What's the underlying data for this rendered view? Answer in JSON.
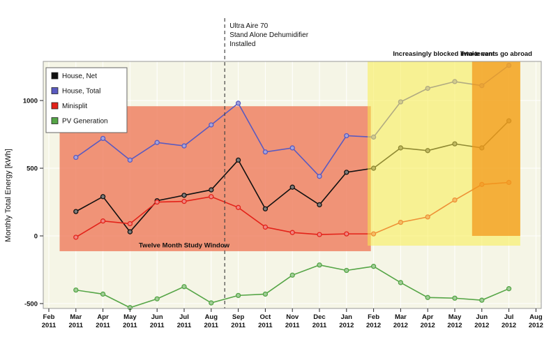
{
  "chart_data": {
    "type": "line",
    "title": "",
    "xlabel": "",
    "ylabel": "Monthly Total Energy [kWh]",
    "plot_bg": "#f5f5e6",
    "grid_color": "#ffffff",
    "ylim": [
      -536,
      1289
    ],
    "yticks": [
      -500,
      0,
      500,
      1000
    ],
    "months": [
      {
        "month": "Feb",
        "year": "2011"
      },
      {
        "month": "Mar",
        "year": "2011"
      },
      {
        "month": "Apr",
        "year": "2011"
      },
      {
        "month": "May",
        "year": "2011"
      },
      {
        "month": "Jun",
        "year": "2011"
      },
      {
        "month": "Jul",
        "year": "2011"
      },
      {
        "month": "Aug",
        "year": "2011"
      },
      {
        "month": "Sep",
        "year": "2011"
      },
      {
        "month": "Oct",
        "year": "2011"
      },
      {
        "month": "Nov",
        "year": "2011"
      },
      {
        "month": "Dec",
        "year": "2011"
      },
      {
        "month": "Jan",
        "year": "2012"
      },
      {
        "month": "Feb",
        "year": "2012"
      },
      {
        "month": "Mar",
        "year": "2012"
      },
      {
        "month": "Apr",
        "year": "2012"
      },
      {
        "month": "May",
        "year": "2012"
      },
      {
        "month": "Jun",
        "year": "2012"
      },
      {
        "month": "Jul",
        "year": "2012"
      },
      {
        "month": "Aug",
        "year": "2012"
      }
    ],
    "series": [
      {
        "id": "house-net",
        "name": "House, Net",
        "color": "#111111",
        "start_index": 1,
        "values": [
          180,
          290,
          30,
          260,
          300,
          340,
          560,
          200,
          360,
          230,
          470,
          500,
          650,
          630,
          680,
          650,
          850
        ]
      },
      {
        "id": "house-total",
        "name": "House, Total",
        "color": "#5a5ac0",
        "start_index": 1,
        "values": [
          580,
          720,
          560,
          690,
          665,
          820,
          980,
          620,
          650,
          440,
          740,
          730,
          990,
          1090,
          1140,
          1110,
          1260
        ]
      },
      {
        "id": "minisplit",
        "name": "Minisplit",
        "color": "#e32219",
        "start_index": 1,
        "values": [
          -10,
          110,
          90,
          250,
          255,
          290,
          210,
          65,
          25,
          10,
          15,
          15,
          100,
          140,
          265,
          380,
          395
        ]
      },
      {
        "id": "pv-generation",
        "name": "PV Generation",
        "color": "#55a546",
        "start_index": 1,
        "values": [
          -400,
          -430,
          -530,
          -465,
          -375,
          -495,
          -440,
          -430,
          -290,
          -215,
          -255,
          -225,
          -345,
          -455,
          -460,
          -475,
          -390
        ]
      }
    ],
    "regions": [
      {
        "id": "study-window",
        "label": "Twelve Month Study Window",
        "x_start_index": 0.4,
        "x_end_index": 11.9,
        "y_min": -113,
        "y_max": 958,
        "color": "#ee7757",
        "opacity": 0.78,
        "layer": "below-lines",
        "label_x_index": 5.0,
        "label_y": -85
      },
      {
        "id": "blocked-vent",
        "label": "Increasingly blocked intake vent",
        "x_start_index": 11.78,
        "x_end_index": 17.42,
        "y_min": -72,
        "y_max": 1289,
        "color": "#f7ec4e",
        "opacity": 0.55,
        "layer": "above-lines",
        "label_above": true
      },
      {
        "id": "tenants-abroad",
        "label": "Two tenants go abroad",
        "x_start_index": 15.64,
        "x_end_index": 17.42,
        "y_min": 0,
        "y_max": 1289,
        "color": "#f29618",
        "opacity": 0.72,
        "layer": "above-lines",
        "label_above": true
      }
    ],
    "annotation_line": {
      "x_index": 6.5,
      "lines": [
        "Ultra Aire 70",
        "Stand Alone Dehumidifier",
        "Installed"
      ]
    },
    "legend_position": "top-left"
  }
}
